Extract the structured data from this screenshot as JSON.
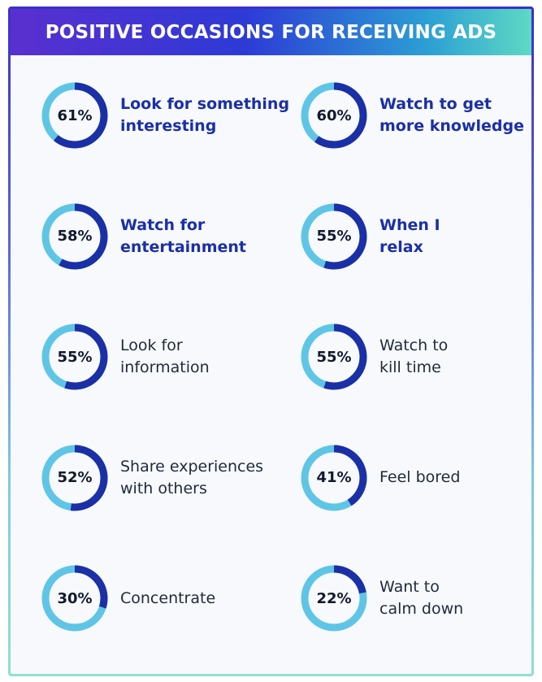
{
  "header": {
    "title": "POSITIVE OCCASIONS FOR RECEIVING ADS"
  },
  "colors": {
    "filled": "#1b2fa6",
    "remaining": "#5fc5e6"
  },
  "chart_data": {
    "type": "donut",
    "title": "POSITIVE OCCASIONS FOR RECEIVING ADS",
    "items": [
      {
        "value": 61,
        "display": "61%",
        "label_lines": [
          "Look for something",
          "interesting"
        ],
        "emphasis": true
      },
      {
        "value": 60,
        "display": "60%",
        "label_lines": [
          "Watch to get",
          "more knowledge"
        ],
        "emphasis": true
      },
      {
        "value": 58,
        "display": "58%",
        "label_lines": [
          "Watch for",
          "entertainment"
        ],
        "emphasis": true
      },
      {
        "value": 55,
        "display": "55%",
        "label_lines": [
          "When I",
          "relax"
        ],
        "emphasis": true
      },
      {
        "value": 55,
        "display": "55%",
        "label_lines": [
          "Look for",
          "information"
        ],
        "emphasis": false
      },
      {
        "value": 55,
        "display": "55%",
        "label_lines": [
          "Watch to",
          "kill time"
        ],
        "emphasis": false
      },
      {
        "value": 52,
        "display": "52%",
        "label_lines": [
          "Share experiences",
          "with others"
        ],
        "emphasis": false
      },
      {
        "value": 41,
        "display": "41%",
        "label_lines": [
          "Feel bored"
        ],
        "emphasis": false
      },
      {
        "value": 30,
        "display": "30%",
        "label_lines": [
          "Concentrate"
        ],
        "emphasis": false
      },
      {
        "value": 22,
        "display": "22%",
        "label_lines": [
          "Want to",
          "calm down"
        ],
        "emphasis": false
      }
    ]
  }
}
